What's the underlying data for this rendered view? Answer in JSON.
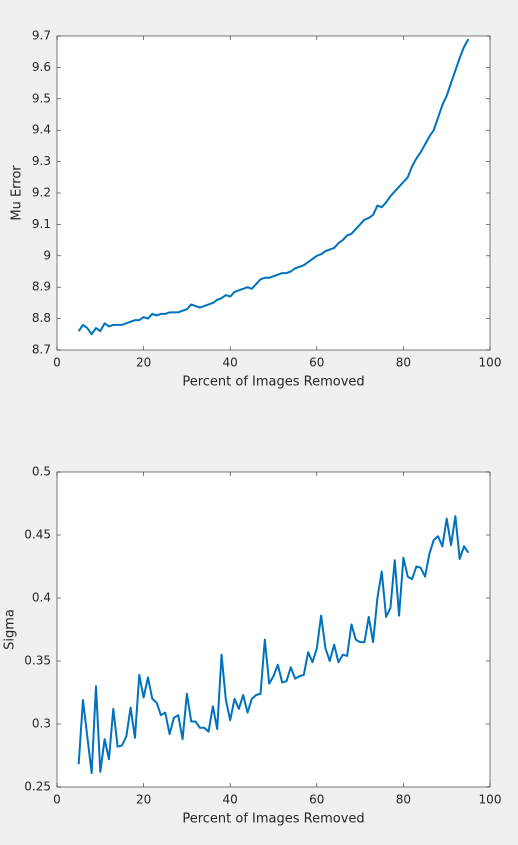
{
  "chart_data": [
    {
      "type": "line",
      "ylabel": "Mu Error",
      "xlabel": "Percent of Images Removed",
      "xlim": [
        0,
        100
      ],
      "xticks": [
        0,
        20,
        40,
        60,
        80,
        100
      ],
      "ylim": [
        8.7,
        9.7
      ],
      "yticks": [
        8.7,
        8.8,
        8.9,
        9,
        9.1,
        9.2,
        9.3,
        9.4,
        9.5,
        9.6,
        9.7
      ],
      "x": [
        5,
        6,
        7,
        8,
        9,
        10,
        11,
        12,
        13,
        14,
        15,
        16,
        17,
        18,
        19,
        20,
        21,
        22,
        23,
        24,
        25,
        26,
        27,
        28,
        29,
        30,
        31,
        32,
        33,
        34,
        35,
        36,
        37,
        38,
        39,
        40,
        41,
        42,
        43,
        44,
        45,
        46,
        47,
        48,
        49,
        50,
        51,
        52,
        53,
        54,
        55,
        56,
        57,
        58,
        59,
        60,
        61,
        62,
        63,
        64,
        65,
        66,
        67,
        68,
        69,
        70,
        71,
        72,
        73,
        74,
        75,
        76,
        77,
        78,
        79,
        80,
        81,
        82,
        83,
        84,
        85,
        86,
        87,
        88,
        89,
        90,
        91,
        92,
        93,
        94,
        95
      ],
      "series": [
        {
          "color": "#0072bd",
          "values": [
            8.76,
            8.78,
            8.77,
            8.75,
            8.77,
            8.76,
            8.785,
            8.775,
            8.78,
            8.78,
            8.78,
            8.785,
            8.79,
            8.795,
            8.795,
            8.805,
            8.8,
            8.815,
            8.81,
            8.815,
            8.815,
            8.82,
            8.82,
            8.82,
            8.825,
            8.83,
            8.845,
            8.84,
            8.835,
            8.84,
            8.845,
            8.85,
            8.86,
            8.865,
            8.875,
            8.87,
            8.885,
            8.89,
            8.895,
            8.9,
            8.895,
            8.91,
            8.925,
            8.93,
            8.93,
            8.935,
            8.94,
            8.945,
            8.945,
            8.95,
            8.96,
            8.965,
            8.97,
            8.98,
            8.99,
            9.0,
            9.005,
            9.015,
            9.02,
            9.025,
            9.04,
            9.05,
            9.065,
            9.07,
            9.085,
            9.1,
            9.115,
            9.12,
            9.13,
            9.16,
            9.155,
            9.17,
            9.19,
            9.205,
            9.22,
            9.235,
            9.25,
            9.285,
            9.31,
            9.33,
            9.355,
            9.38,
            9.4,
            9.44,
            9.48,
            9.51,
            9.55,
            9.59,
            9.63,
            9.665,
            9.69
          ]
        }
      ]
    },
    {
      "type": "line",
      "ylabel": "Sigma",
      "xlabel": "Percent of Images Removed",
      "xlim": [
        0,
        100
      ],
      "xticks": [
        0,
        20,
        40,
        60,
        80,
        100
      ],
      "ylim": [
        0.25,
        0.5
      ],
      "yticks": [
        0.25,
        0.3,
        0.35,
        0.4,
        0.45,
        0.5
      ],
      "x": [
        5,
        6,
        7,
        8,
        9,
        10,
        11,
        12,
        13,
        14,
        15,
        16,
        17,
        18,
        19,
        20,
        21,
        22,
        23,
        24,
        25,
        26,
        27,
        28,
        29,
        30,
        31,
        32,
        33,
        34,
        35,
        36,
        37,
        38,
        39,
        40,
        41,
        42,
        43,
        44,
        45,
        46,
        47,
        48,
        49,
        50,
        51,
        52,
        53,
        54,
        55,
        56,
        57,
        58,
        59,
        60,
        61,
        62,
        63,
        64,
        65,
        66,
        67,
        68,
        69,
        70,
        71,
        72,
        73,
        74,
        75,
        76,
        77,
        78,
        79,
        80,
        81,
        82,
        83,
        84,
        85,
        86,
        87,
        88,
        89,
        90,
        91,
        92,
        93,
        94,
        95
      ],
      "series": [
        {
          "color": "#0072bd",
          "values": [
            0.268,
            0.319,
            0.29,
            0.261,
            0.33,
            0.262,
            0.288,
            0.272,
            0.312,
            0.282,
            0.283,
            0.29,
            0.313,
            0.289,
            0.339,
            0.321,
            0.337,
            0.32,
            0.317,
            0.307,
            0.309,
            0.292,
            0.305,
            0.307,
            0.288,
            0.324,
            0.302,
            0.302,
            0.297,
            0.297,
            0.294,
            0.314,
            0.296,
            0.355,
            0.319,
            0.303,
            0.32,
            0.312,
            0.323,
            0.309,
            0.32,
            0.323,
            0.324,
            0.367,
            0.332,
            0.338,
            0.347,
            0.333,
            0.334,
            0.345,
            0.336,
            0.338,
            0.339,
            0.357,
            0.349,
            0.36,
            0.386,
            0.36,
            0.35,
            0.363,
            0.349,
            0.355,
            0.354,
            0.379,
            0.367,
            0.365,
            0.365,
            0.385,
            0.365,
            0.4,
            0.421,
            0.385,
            0.392,
            0.43,
            0.386,
            0.432,
            0.417,
            0.415,
            0.425,
            0.424,
            0.417,
            0.435,
            0.446,
            0.449,
            0.441,
            0.463,
            0.442,
            0.465,
            0.431,
            0.441,
            0.436
          ]
        }
      ]
    }
  ]
}
